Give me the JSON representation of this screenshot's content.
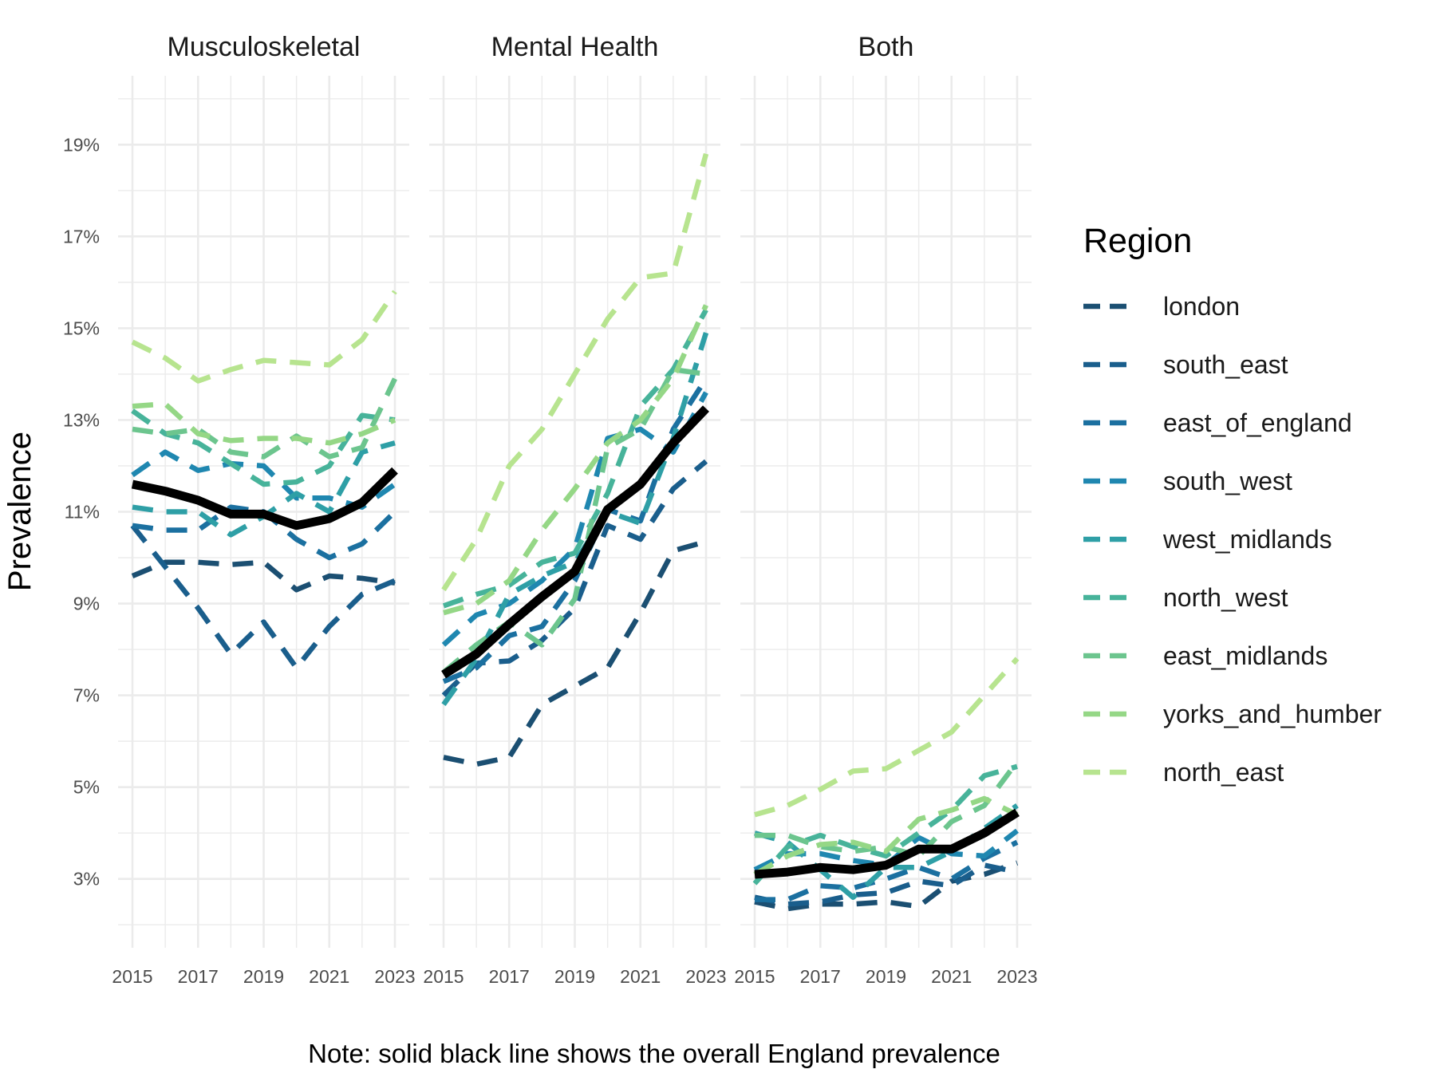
{
  "chart_data": {
    "type": "line",
    "ylabel": "Prevalence",
    "x": [
      2015,
      2016,
      2017,
      2018,
      2019,
      2020,
      2021,
      2022,
      2023
    ],
    "x_ticks": [
      "2015",
      "2017",
      "2019",
      "2021",
      "2023"
    ],
    "ylim": [
      1.5,
      20.5
    ],
    "y_ticks": [
      {
        "value": 3,
        "label": "3%"
      },
      {
        "value": 5,
        "label": "5%"
      },
      {
        "value": 7,
        "label": "7%"
      },
      {
        "value": 9,
        "label": "9%"
      },
      {
        "value": 11,
        "label": "11%"
      },
      {
        "value": 13,
        "label": "13%"
      },
      {
        "value": 15,
        "label": "15%"
      },
      {
        "value": 17,
        "label": "17%"
      },
      {
        "value": 19,
        "label": "19%"
      }
    ],
    "legend": {
      "title": "Region",
      "position": "right"
    },
    "regions": [
      {
        "name": "london",
        "color": "#1b4f72"
      },
      {
        "name": "south_east",
        "color": "#1a5e8c"
      },
      {
        "name": "east_of_england",
        "color": "#1b70a0"
      },
      {
        "name": "south_west",
        "color": "#1f87b0"
      },
      {
        "name": "west_midlands",
        "color": "#2e9fa6"
      },
      {
        "name": "north_west",
        "color": "#47b39a"
      },
      {
        "name": "east_midlands",
        "color": "#6cc58e"
      },
      {
        "name": "yorks_and_humber",
        "color": "#95d786"
      },
      {
        "name": "north_east",
        "color": "#b7e48f"
      }
    ],
    "overall": {
      "color": "#000000",
      "style": "solid"
    },
    "panels": [
      {
        "title": "Musculoskeletal",
        "overall": [
          11.6,
          11.45,
          11.25,
          10.95,
          10.95,
          10.7,
          10.85,
          11.2,
          11.9
        ],
        "series": {
          "london": [
            9.6,
            9.9,
            9.9,
            9.85,
            9.9,
            9.3,
            9.6,
            9.55,
            9.45
          ],
          "south_east": [
            10.7,
            9.8,
            8.9,
            7.9,
            8.6,
            7.6,
            8.5,
            9.2,
            9.5
          ],
          "east_of_england": [
            10.7,
            10.6,
            10.6,
            11.1,
            11.0,
            10.4,
            10.0,
            10.3,
            11.0
          ],
          "south_west": [
            11.8,
            12.3,
            11.9,
            12.05,
            12.0,
            11.3,
            11.3,
            11.1,
            11.6
          ],
          "west_midlands": [
            11.1,
            11.0,
            11.0,
            10.5,
            10.9,
            11.4,
            11.0,
            12.3,
            12.5
          ],
          "north_west": [
            13.2,
            12.7,
            12.5,
            12.05,
            11.6,
            11.65,
            12.0,
            13.1,
            13.0
          ],
          "east_midlands": [
            12.8,
            12.7,
            12.8,
            12.3,
            12.2,
            12.65,
            12.2,
            12.4,
            13.9
          ],
          "yorks_and_humber": [
            13.3,
            13.35,
            12.7,
            12.55,
            12.6,
            12.6,
            12.5,
            12.7,
            13.0
          ],
          "north_east": [
            14.7,
            14.35,
            13.85,
            14.1,
            14.3,
            14.25,
            14.2,
            14.75,
            15.8
          ]
        }
      },
      {
        "title": "Mental Health",
        "overall": [
          7.45,
          7.9,
          8.55,
          9.15,
          9.7,
          11.05,
          11.6,
          12.5,
          13.25
        ],
        "series": {
          "london": [
            5.65,
            5.5,
            5.65,
            6.8,
            7.2,
            7.6,
            8.8,
            10.15,
            10.35
          ],
          "south_east": [
            7.0,
            7.7,
            7.75,
            8.2,
            8.9,
            10.7,
            10.4,
            11.5,
            12.1
          ],
          "east_of_england": [
            7.3,
            7.6,
            8.3,
            8.5,
            9.5,
            11.05,
            10.8,
            12.8,
            13.9
          ],
          "south_west": [
            8.1,
            8.75,
            9.0,
            9.5,
            10.2,
            12.6,
            12.8,
            12.3,
            13.6
          ],
          "west_midlands": [
            6.8,
            7.8,
            9.2,
            9.6,
            9.9,
            11.0,
            10.75,
            12.6,
            14.9
          ],
          "north_west": [
            8.95,
            9.2,
            9.4,
            9.9,
            10.1,
            11.4,
            13.3,
            14.1,
            15.4
          ],
          "east_midlands": [
            7.5,
            8.1,
            8.6,
            8.1,
            9.1,
            12.4,
            12.8,
            14.1,
            14.0
          ],
          "yorks_and_humber": [
            8.8,
            9.0,
            9.5,
            10.6,
            11.5,
            12.5,
            13.0,
            13.9,
            15.5
          ],
          "north_east": [
            9.3,
            10.4,
            12.0,
            12.8,
            14.0,
            15.2,
            16.1,
            16.2,
            18.8
          ]
        }
      },
      {
        "title": "Both",
        "overall": [
          3.1,
          3.15,
          3.25,
          3.2,
          3.3,
          3.65,
          3.65,
          4.0,
          4.45
        ],
        "series": {
          "london": [
            2.5,
            2.35,
            2.45,
            2.45,
            2.5,
            2.4,
            2.95,
            3.1,
            3.35
          ],
          "south_east": [
            2.6,
            2.45,
            2.5,
            2.65,
            2.7,
            2.95,
            2.85,
            3.3,
            3.15
          ],
          "east_of_england": [
            2.55,
            2.55,
            2.85,
            2.8,
            3.0,
            3.25,
            3.0,
            3.45,
            3.8
          ],
          "south_west": [
            3.2,
            3.55,
            3.55,
            3.4,
            3.3,
            3.9,
            3.55,
            3.5,
            4.05
          ],
          "west_midlands": [
            4.0,
            3.8,
            3.2,
            2.6,
            3.25,
            3.25,
            3.6,
            4.1,
            4.6
          ],
          "north_west": [
            2.9,
            3.7,
            3.95,
            3.7,
            3.5,
            4.0,
            4.5,
            5.25,
            5.45
          ],
          "east_midlands": [
            3.95,
            3.95,
            3.7,
            3.6,
            3.7,
            3.5,
            4.25,
            4.6,
            5.55
          ],
          "yorks_and_humber": [
            3.1,
            3.5,
            3.75,
            3.8,
            3.6,
            4.3,
            4.5,
            4.75,
            4.4
          ],
          "north_east": [
            4.4,
            4.6,
            4.95,
            5.35,
            5.4,
            5.8,
            6.2,
            7.0,
            7.8
          ]
        }
      }
    ]
  },
  "note": "Note: solid black line shows the overall England prevalence"
}
